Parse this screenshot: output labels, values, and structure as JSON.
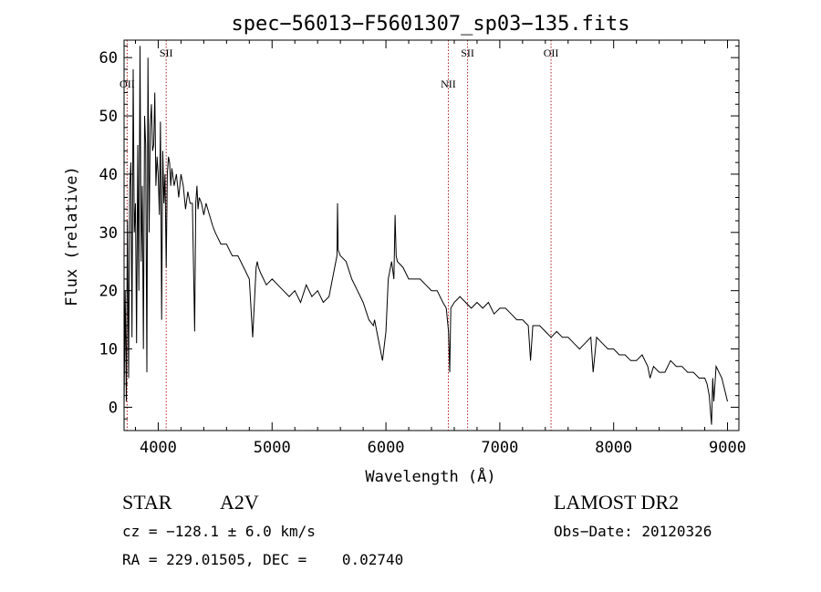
{
  "chart_data": {
    "type": "line",
    "title": "spec−56013−F5601307_sp03−135.fits",
    "xlabel": "Wavelength (Å)",
    "ylabel": "Flux (relative)",
    "xlim": [
      3700,
      9100
    ],
    "ylim": [
      -4,
      63
    ],
    "xticks": [
      4000,
      5000,
      6000,
      7000,
      8000,
      9000
    ],
    "yticks": [
      0,
      10,
      20,
      30,
      40,
      50,
      60
    ],
    "grid": false,
    "series": [
      {
        "x": [
          3700,
          3710,
          3720,
          3730,
          3740,
          3750,
          3760,
          3770,
          3780,
          3790,
          3800,
          3810,
          3820,
          3830,
          3840,
          3850,
          3860,
          3870,
          3880,
          3890,
          3900,
          3910,
          3920,
          3930,
          3940,
          3950,
          3960,
          3970,
          3980,
          3990,
          4000,
          4010,
          4020,
          4030,
          4040,
          4050,
          4060,
          4070,
          4080,
          4090,
          4100,
          4110,
          4120,
          4140,
          4160,
          4180,
          4200,
          4220,
          4240,
          4260,
          4280,
          4300,
          4320,
          4330,
          4340,
          4350,
          4360,
          4380,
          4400,
          4420,
          4450,
          4480,
          4500,
          4550,
          4600,
          4650,
          4700,
          4750,
          4800,
          4830,
          4850,
          4860,
          4870,
          4880,
          4900,
          4950,
          5000,
          5050,
          5100,
          5150,
          5200,
          5250,
          5300,
          5350,
          5400,
          5450,
          5500,
          5550,
          5570,
          5575,
          5580,
          5600,
          5650,
          5700,
          5750,
          5800,
          5850,
          5890,
          5900,
          5950,
          5970,
          6000,
          6020,
          6050,
          6070,
          6080,
          6090,
          6100,
          6150,
          6200,
          6250,
          6300,
          6350,
          6400,
          6450,
          6500,
          6530,
          6550,
          6560,
          6570,
          6600,
          6650,
          6700,
          6750,
          6800,
          6850,
          6900,
          6950,
          7000,
          7050,
          7100,
          7150,
          7200,
          7250,
          7270,
          7290,
          7300,
          7350,
          7400,
          7450,
          7500,
          7550,
          7600,
          7650,
          7700,
          7750,
          7800,
          7820,
          7850,
          7900,
          7950,
          8000,
          8050,
          8100,
          8150,
          8200,
          8250,
          8300,
          8320,
          8350,
          8400,
          8450,
          8500,
          8550,
          8600,
          8650,
          8700,
          8750,
          8800,
          8820,
          8840,
          8860,
          8870,
          8880,
          8900,
          8950,
          9000
        ],
        "y": [
          0,
          20,
          1,
          32,
          5,
          38,
          42,
          12,
          58,
          30,
          35,
          11,
          45,
          20,
          62,
          25,
          38,
          10,
          50,
          45,
          6,
          60,
          30,
          48,
          52,
          44,
          45,
          54,
          38,
          43,
          40,
          33,
          49,
          15,
          44,
          35,
          40,
          24,
          40,
          43,
          42,
          38,
          41,
          38,
          40,
          36,
          40,
          38,
          34,
          37,
          35,
          35,
          13,
          35,
          38,
          34,
          36,
          35,
          33,
          35,
          33,
          31,
          30,
          28,
          28,
          26,
          26,
          24,
          22,
          12,
          20,
          24,
          25,
          24,
          23,
          21,
          22,
          21,
          20,
          19,
          20,
          18,
          21,
          19,
          20,
          18,
          19,
          24,
          26,
          35,
          27,
          26,
          25,
          22,
          20,
          18,
          15,
          14,
          15,
          10,
          8,
          13,
          22,
          25,
          22,
          33,
          26,
          25,
          24,
          22,
          22,
          22,
          21,
          20,
          20,
          18,
          17,
          13,
          6,
          17,
          18,
          19,
          18,
          17,
          18,
          17,
          18,
          16,
          17,
          17,
          16,
          15,
          15,
          14,
          8,
          14,
          14,
          14,
          13,
          12,
          13,
          12,
          12,
          11,
          10,
          11,
          12,
          6,
          12,
          11,
          10,
          10,
          9,
          9,
          8,
          8,
          9,
          7,
          5,
          7,
          6,
          6,
          8,
          7,
          7,
          6,
          6,
          5,
          5,
          4,
          2,
          -3,
          5,
          1,
          7,
          5,
          1
        ]
      }
    ],
    "annotations": [
      {
        "label": "OII",
        "x": 3727,
        "row": "low"
      },
      {
        "label": "SII",
        "x": 4070,
        "row": "high"
      },
      {
        "label": "NII",
        "x": 6548,
        "row": "low"
      },
      {
        "label": "SII",
        "x": 6717,
        "row": "high"
      },
      {
        "label": "OII",
        "x": 7450,
        "row": "high"
      }
    ]
  },
  "info": {
    "class": "STAR",
    "subclass": "A2V",
    "survey": "LAMOST DR2",
    "cz": "cz = −128.1 ± 6.0 km/s",
    "obs_date": "Obs−Date: 20120326",
    "radec": "RA = 229.01505, DEC =    0.02740"
  },
  "colors": {
    "line": "#000000",
    "annotation": "#b22222"
  }
}
